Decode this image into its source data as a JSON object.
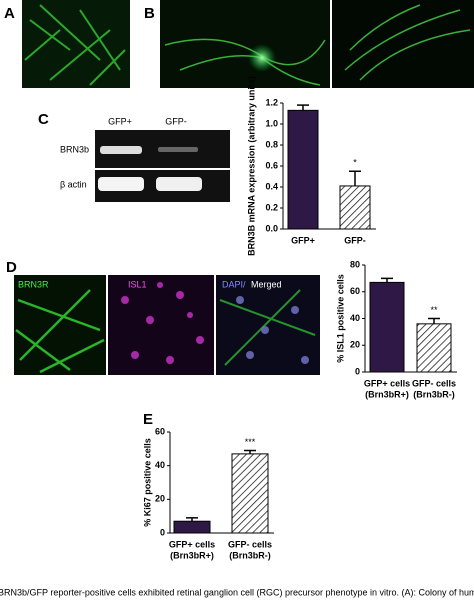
{
  "panel_labels": [
    "A",
    "B",
    "C",
    "D",
    "E"
  ],
  "gel": {
    "columns": [
      "GFP+",
      "GFP-"
    ],
    "rows": [
      "BRN3b",
      "β actin"
    ]
  },
  "image_labels": [
    "BRN3R",
    "ISL1",
    "DAPI/",
    "Merged"
  ],
  "caption": "BRN3b/GFP reporter-positive cells exhibited retinal ganglion cell (RGC) precursor phenotype in vitro. (A): Colony of hum",
  "chart_data": [
    {
      "type": "bar",
      "ylabel": "BRN3B mRNA expression (arbitrary units)",
      "categories": [
        "GFP+",
        "GFP-"
      ],
      "values": [
        1.13,
        0.41
      ],
      "errors": [
        0.05,
        0.14
      ],
      "value_annotations": [
        null,
        "*"
      ],
      "bar_fills": [
        "#2e1846",
        "hatched"
      ],
      "ylim": [
        0,
        1.2
      ],
      "yticks": [
        {
          "value": 0,
          "label": "0.0"
        },
        0.2,
        0.4,
        0.6,
        0.8,
        {
          "value": 1,
          "label": "1.0"
        },
        1.2
      ]
    },
    {
      "type": "bar",
      "ylabel": "% ISL1 positive cells",
      "categories": [
        "GFP+ cells",
        "GFP- cells"
      ],
      "category_sublabels": [
        "(Brn3bR+)",
        "(Brn3bR-)"
      ],
      "values": [
        67,
        36
      ],
      "errors": [
        3,
        4
      ],
      "value_annotations": [
        null,
        "**"
      ],
      "bar_fills": [
        "#2e1846",
        "hatched"
      ],
      "ylim": [
        0,
        80
      ],
      "yticks": [
        0,
        20,
        40,
        60,
        80
      ]
    },
    {
      "type": "bar",
      "ylabel": "% Ki67 positive cells",
      "categories": [
        "GFP+ cells",
        "GFP- cells"
      ],
      "category_sublabels": [
        "(Brn3bR+)",
        "(Brn3bR-)"
      ],
      "values": [
        7,
        47
      ],
      "errors": [
        2,
        2
      ],
      "value_annotations": [
        null,
        "***"
      ],
      "bar_fills": [
        "#2e1846",
        "hatched"
      ],
      "ylim": [
        0,
        60
      ],
      "yticks": [
        0,
        20,
        40,
        60
      ]
    }
  ]
}
